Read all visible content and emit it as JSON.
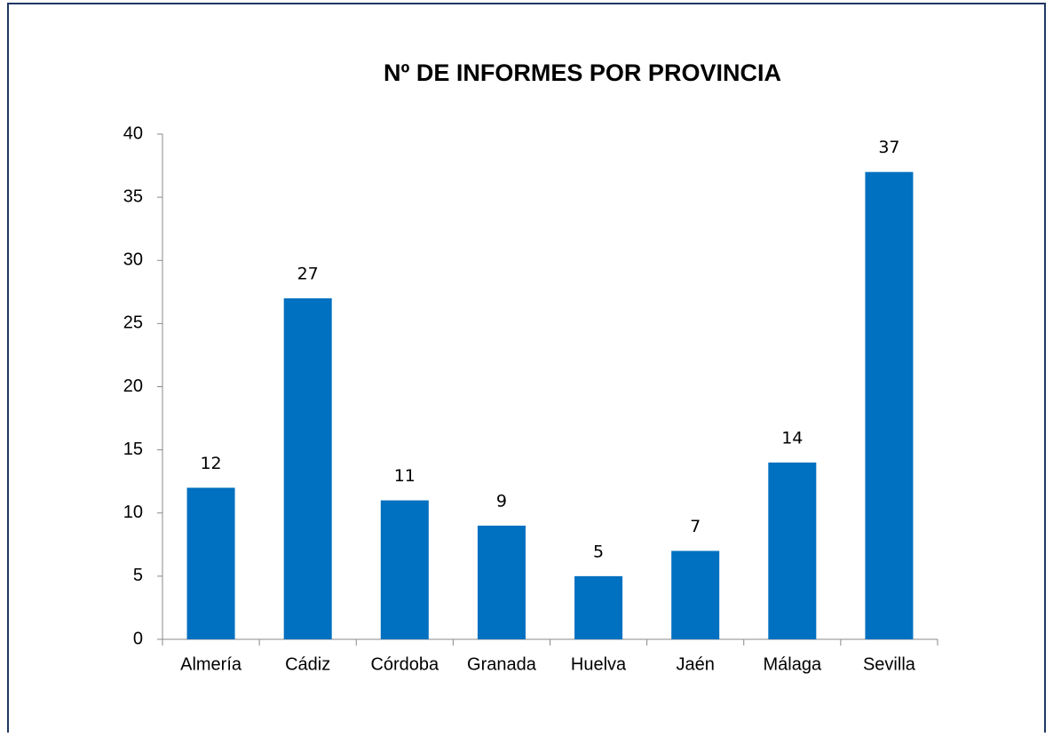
{
  "chart_data": {
    "type": "bar",
    "title": "Nº DE INFORMES POR PROVINCIA",
    "categories": [
      "Almería",
      "Cádiz",
      "Córdoba",
      "Granada",
      "Huelva",
      "Jaén",
      "Málaga",
      "Sevilla"
    ],
    "values": [
      12,
      27,
      11,
      9,
      5,
      7,
      14,
      37
    ],
    "color": "#0070c0",
    "ylim": [
      0,
      40
    ],
    "yticks": [
      0,
      5,
      10,
      15,
      20,
      25,
      30,
      35,
      40
    ],
    "grid": false
  }
}
